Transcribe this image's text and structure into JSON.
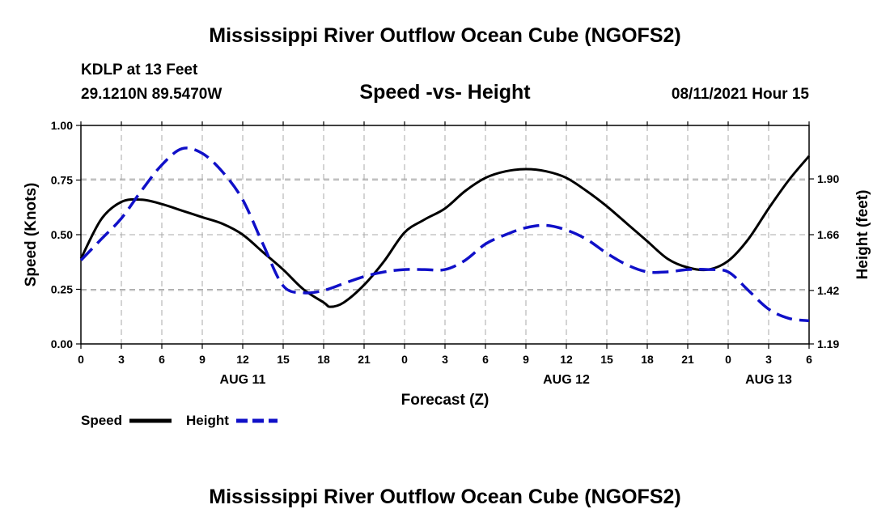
{
  "page": {
    "title_top": "Mississippi River Outflow Ocean Cube (NGOFS2)",
    "title_bottom": "Mississippi River Outflow Ocean Cube (NGOFS2)",
    "station": "KDLP at 13 Feet",
    "coords": "29.1210N  89.5470W",
    "datetime": "08/11/2021 Hour 15"
  },
  "chart_data": {
    "type": "line",
    "title": "Speed -vs- Height",
    "xlabel": "Forecast (Z)",
    "ylabel": "Speed (Knots)",
    "y2label": "Height (feet)",
    "x_range_hours": [
      0,
      54
    ],
    "x_tick_hours": [
      0,
      3,
      6,
      9,
      12,
      15,
      18,
      21,
      24,
      27,
      30,
      33,
      36,
      39,
      42,
      45,
      48,
      51,
      54
    ],
    "x_tick_labels": [
      "0",
      "3",
      "6",
      "9",
      "12",
      "15",
      "18",
      "21",
      "0",
      "3",
      "6",
      "9",
      "12",
      "15",
      "18",
      "21",
      "0",
      "3",
      "6"
    ],
    "date_labels": [
      {
        "label": "AUG 11",
        "hour": 12
      },
      {
        "label": "AUG 12",
        "hour": 36
      },
      {
        "label": "AUG 13",
        "hour": 51
      }
    ],
    "ylim": [
      0,
      1.0
    ],
    "y_ticks": [
      0,
      0.25,
      0.5,
      0.75,
      1.0
    ],
    "y_tick_labels": [
      "0.00",
      "0.25",
      "0.50",
      "0.75",
      "1.00"
    ],
    "y2lim": [
      1.19,
      2.13
    ],
    "y2_ticks": [
      1.19,
      1.42,
      1.66,
      1.9
    ],
    "y2_tick_labels": [
      "1.19",
      "1.42",
      "1.66",
      "1.90"
    ],
    "series": [
      {
        "name": "Speed",
        "axis": "left",
        "color": "#000000",
        "dash": "solid",
        "x": [
          0,
          1.5,
          3,
          4.5,
          6,
          7.5,
          9,
          10.5,
          12,
          13.5,
          15,
          16.5,
          18,
          18.5,
          19.5,
          21,
          22.5,
          24,
          25.5,
          27,
          28.5,
          30,
          31.5,
          33,
          34.5,
          36,
          37.5,
          39,
          40.5,
          42,
          43.5,
          45,
          46.5,
          48,
          49.5,
          51,
          52.5,
          54
        ],
        "values": [
          0.39,
          0.57,
          0.65,
          0.66,
          0.64,
          0.61,
          0.58,
          0.55,
          0.5,
          0.42,
          0.34,
          0.25,
          0.19,
          0.17,
          0.19,
          0.27,
          0.38,
          0.51,
          0.57,
          0.62,
          0.7,
          0.76,
          0.79,
          0.8,
          0.79,
          0.76,
          0.7,
          0.63,
          0.55,
          0.47,
          0.39,
          0.35,
          0.34,
          0.38,
          0.48,
          0.62,
          0.75,
          0.86
        ]
      },
      {
        "name": "Height",
        "axis": "right",
        "color": "#1010c8",
        "dash": "dashed",
        "x": [
          0,
          1.5,
          3,
          4.5,
          6,
          7.5,
          9,
          10.5,
          12,
          13.5,
          15,
          16.5,
          18,
          19.5,
          21,
          22.5,
          24,
          25.5,
          27,
          28.5,
          30,
          31.5,
          33,
          34.5,
          36,
          37.5,
          39,
          40.5,
          42,
          43.5,
          45,
          46.5,
          48,
          49.5,
          51,
          52.5,
          54
        ],
        "values": [
          1.55,
          1.64,
          1.73,
          1.85,
          1.96,
          2.03,
          2.01,
          1.93,
          1.81,
          1.62,
          1.44,
          1.41,
          1.42,
          1.45,
          1.48,
          1.5,
          1.51,
          1.51,
          1.51,
          1.55,
          1.62,
          1.66,
          1.69,
          1.7,
          1.68,
          1.64,
          1.58,
          1.53,
          1.5,
          1.5,
          1.51,
          1.51,
          1.5,
          1.42,
          1.34,
          1.3,
          1.29
        ]
      }
    ]
  }
}
